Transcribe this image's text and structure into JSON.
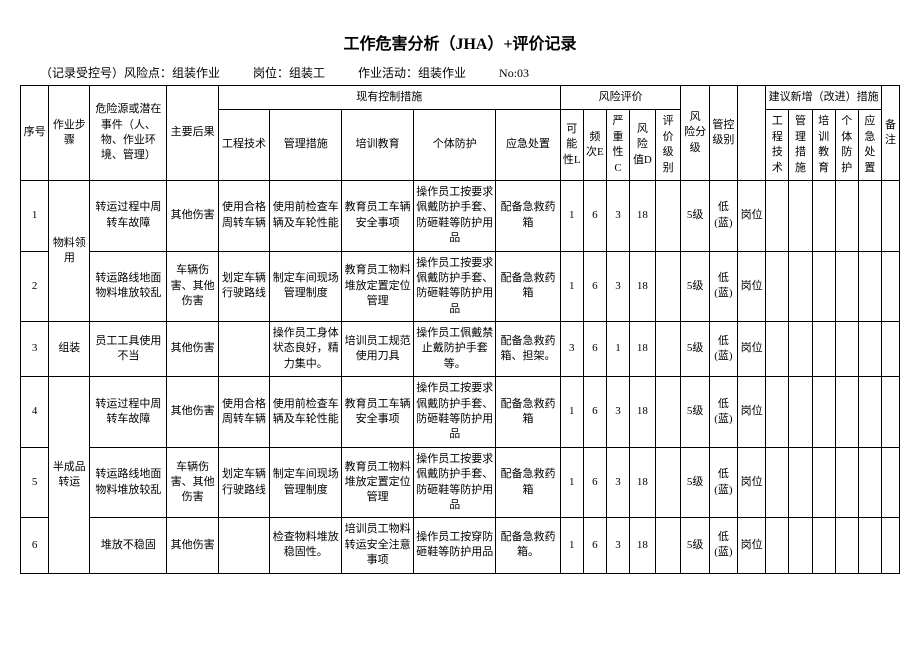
{
  "title": "工作危害分析（JHA）+评价记录",
  "meta": {
    "record": "（记录受控号）风险点：组装作业",
    "post": "岗位：组装工",
    "activity": "作业活动：组装作业",
    "no": "No:03"
  },
  "headers": {
    "seq": "序号",
    "step": "作业步骤",
    "hazard": "危险源或潜在事件（人、物、作业环境、管理）",
    "consequence": "主要后果",
    "existing": "现有控制措施",
    "eng": "工程技术",
    "mgmt": "管理措施",
    "train": "培训教育",
    "ppe": "个体防护",
    "emerg": "应急处置",
    "riskeval": "风险评价",
    "L": "可能性L",
    "E": "频次E",
    "C": "严重性C",
    "D": "风险值D",
    "grade": "评价级别",
    "fenji": "风 险分级",
    "gk": "管控级别",
    "suggest": "建议新增（改进）措施",
    "sug_eng": "工程技术",
    "sug_mgmt": "管理措施",
    "sug_train": "培训教育",
    "sug_ppe": "个体防护",
    "sug_emerg": "应急处置",
    "bz": "备注"
  },
  "steps": {
    "s1": "物料领用",
    "s2": "组装",
    "s3": "半成品转运"
  },
  "rows": [
    {
      "seq": "1",
      "hazard": "转运过程中周转车故障",
      "cons": "其他伤害",
      "eng": "使用合格周转车辆",
      "mgmt": "使用前检查车辆及车轮性能",
      "train": "教育员工车辆安全事项",
      "ppe": "操作员工按要求佩戴防护手套、防砸鞋等防护用品",
      "emerg": "配备急救药箱",
      "L": "1",
      "E": "6",
      "C": "3",
      "D": "18",
      "grade": "",
      "fenji": "5级",
      "gk": "低(蓝)",
      "gkpos": "岗位"
    },
    {
      "seq": "2",
      "hazard": "转运路线地面物料堆放较乱",
      "cons": "车辆伤害、其他伤害",
      "eng": "划定车辆行驶路线",
      "mgmt": "制定车间现场管理制度",
      "train": "教育员工物料堆放定置定位管理",
      "ppe": "操作员工按要求佩戴防护手套、防砸鞋等防护用品",
      "emerg": "配备急救药箱",
      "L": "1",
      "E": "6",
      "C": "3",
      "D": "18",
      "grade": "",
      "fenji": "5级",
      "gk": "低(蓝)",
      "gkpos": "岗位"
    },
    {
      "seq": "3",
      "hazard": "员工工具使用不当",
      "cons": "其他伤害",
      "eng": "",
      "mgmt": "操作员工身体状态良好，精力集中。",
      "train": "培训员工规范使用刀具",
      "ppe": "操作员工佩戴禁止戴防护手套等。",
      "emerg": "配备急救药箱、担架。",
      "L": "3",
      "E": "6",
      "C": "1",
      "D": "18",
      "grade": "",
      "fenji": "5级",
      "gk": "低(蓝)",
      "gkpos": "岗位"
    },
    {
      "seq": "4",
      "hazard": "转运过程中周转车故障",
      "cons": "其他伤害",
      "eng": "使用合格周转车辆",
      "mgmt": "使用前检查车辆及车轮性能",
      "train": "教育员工车辆安全事项",
      "ppe": "操作员工按要求佩戴防护手套、防砸鞋等防护用品",
      "emerg": "配备急救药箱",
      "L": "1",
      "E": "6",
      "C": "3",
      "D": "18",
      "grade": "",
      "fenji": "5级",
      "gk": "低(蓝)",
      "gkpos": "岗位"
    },
    {
      "seq": "5",
      "hazard": "转运路线地面物料堆放较乱",
      "cons": "车辆伤害、其他伤害",
      "eng": "划定车辆行驶路线",
      "mgmt": "制定车间现场管理制度",
      "train": "教育员工物料堆放定置定位管理",
      "ppe": "操作员工按要求佩戴防护手套、防砸鞋等防护用品",
      "emerg": "配备急救药箱",
      "L": "1",
      "E": "6",
      "C": "3",
      "D": "18",
      "grade": "",
      "fenji": "5级",
      "gk": "低(蓝)",
      "gkpos": "岗位"
    },
    {
      "seq": "6",
      "hazard": "堆放不稳固",
      "cons": "其他伤害",
      "eng": "",
      "mgmt": "检查物料堆放稳固性。",
      "train": "培训员工物料转运安全注意事项",
      "ppe": "操作员工按穿防砸鞋等防护用品",
      "emerg": "配备急救药箱。",
      "L": "1",
      "E": "6",
      "C": "3",
      "D": "18",
      "grade": "",
      "fenji": "5级",
      "gk": "低(蓝)",
      "gkpos": "岗位"
    }
  ]
}
